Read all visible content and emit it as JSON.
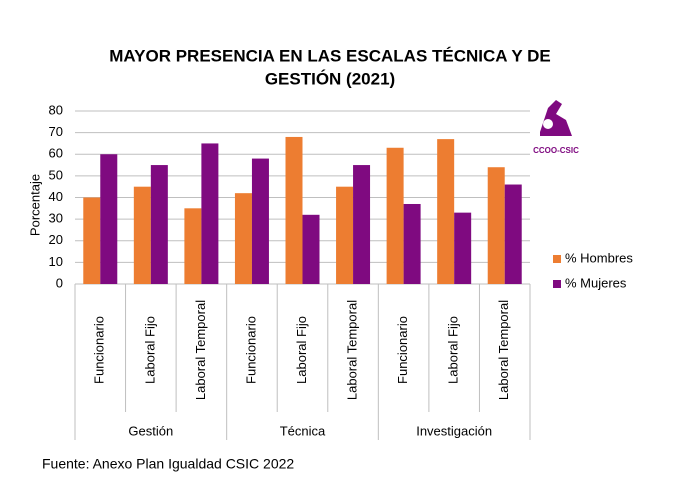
{
  "chart_data": {
    "type": "bar",
    "title": [
      "MAYOR PRESENCIA EN LAS ESCALAS TÉCNICA Y DE",
      "GESTIÓN (2021)"
    ],
    "y_label": "Porcentaje",
    "categories": [
      "Funcionario",
      "Laboral Fijo",
      "Laboral Temporal",
      "Funcionario",
      "Laboral Fijo",
      "Laboral Temporal",
      "Funcionario",
      "Laboral Fijo",
      "Laboral Temporal"
    ],
    "groups": [
      "Gestión",
      "Técnica",
      "Investigación"
    ],
    "series": [
      {
        "name": "% Hombres",
        "color": "#ed7d31",
        "values": [
          40,
          45,
          35,
          42,
          68,
          45,
          63,
          67,
          54
        ]
      },
      {
        "name": "% Mujeres",
        "color": "#7f0a80",
        "values": [
          60,
          55,
          65,
          58,
          32,
          55,
          37,
          33,
          46
        ]
      }
    ],
    "ylim": [
      0,
      80
    ],
    "yticks": [
      0,
      10,
      20,
      30,
      40,
      50,
      60,
      70,
      80
    ],
    "grid": true,
    "legend": "right",
    "logo": "CCOO-CSIC",
    "source": "Fuente: Anexo Plan Igualdad CSIC 2022"
  }
}
